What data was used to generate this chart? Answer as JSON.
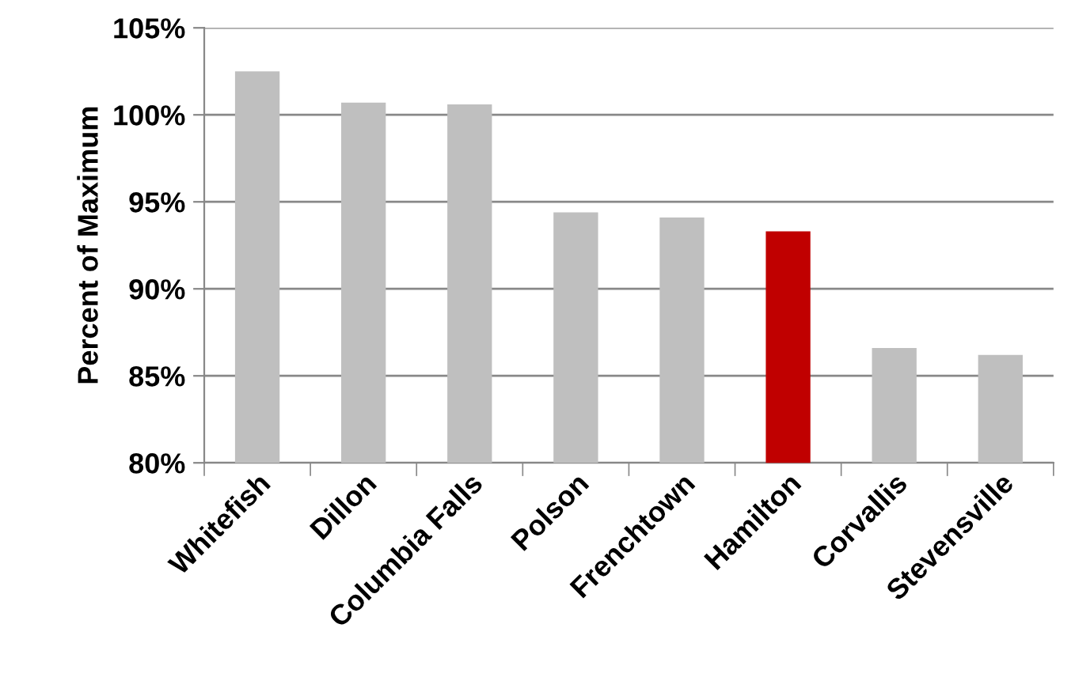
{
  "chart_data": {
    "type": "bar",
    "ylabel": "Percent of Maximum",
    "categories": [
      "Whitefish",
      "Dillon",
      "Columbia Falls",
      "Polson",
      "Frenchtown",
      "Hamilton",
      "Corvallis",
      "Stevensville"
    ],
    "values": [
      102.5,
      100.7,
      100.6,
      94.4,
      94.1,
      93.3,
      86.6,
      86.2
    ],
    "colors": [
      "#bfbfbf",
      "#bfbfbf",
      "#bfbfbf",
      "#bfbfbf",
      "#bfbfbf",
      "#c00000",
      "#bfbfbf",
      "#bfbfbf"
    ],
    "ylim": [
      80,
      105
    ],
    "yticks": [
      {
        "value": 80,
        "label": "80%"
      },
      {
        "value": 85,
        "label": "85%"
      },
      {
        "value": 90,
        "label": "90%"
      },
      {
        "value": 95,
        "label": "95%"
      },
      {
        "value": 100,
        "label": "100%"
      },
      {
        "value": 105,
        "label": "105%"
      }
    ],
    "grid": "y"
  }
}
